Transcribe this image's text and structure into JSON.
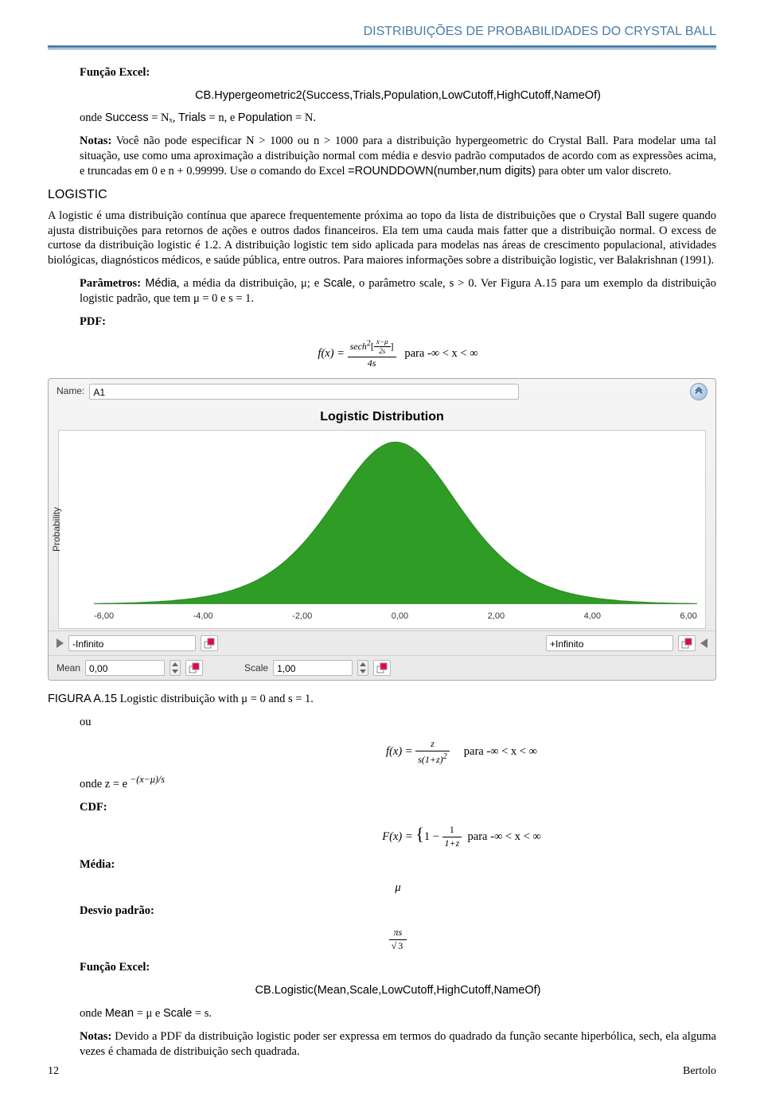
{
  "header": {
    "title": "DISTRIBUIÇÕES DE PROBABILIDADES DO CRYSTAL BALL"
  },
  "sec1": {
    "funcLabel": "Função Excel:",
    "funcCall": "CB.Hypergeometric2(Success,Trials,Population,LowCutoff,HighCutoff,NameOf)",
    "onde": "onde ",
    "success": "Success",
    "eq1": " = Nₓ, ",
    "trials": "Trials",
    "eq2": " = n, e ",
    "population": "Population",
    "eq3": " = N.",
    "notasLabel": "Notas:",
    "notasText": " Você não pode especificar N > 1000 ou n > 1000 para a distribuição hypergeometric do Crystal Ball. Para modelar uma tal situação, use como uma aproximação a distribuição normal com média e desvio padrão computados de acordo com as expressões acima, e truncadas em 0 e n + 0.99999. Use o comando do Excel ",
    "rounddown": "=ROUNDDOWN(number,num digits)",
    "notasTail": " para obter um valor discreto."
  },
  "logistic": {
    "title": "LOGISTIC",
    "para": "A logistic é uma distribuição contínua que aparece frequentemente próxima ao topo da lista de distribuições que o Crystal Ball sugere quando ajusta distribuições para retornos de ações e outros dados financeiros. Ela tem uma cauda mais fatter que a distribuição normal. O excess de curtose da distribuição logistic é 1.2. A distribuição logistic tem sido aplicada para modelas nas áreas de crescimento populacional, atividades biológicas, diagnósticos médicos, e saúde pública, entre outros. Para maiores informações sobre a distribuição logistic, ver Balakrishnan (1991).",
    "paramsLabel": "Parâmetros:",
    "paramsText1": " Média",
    "paramsText2": ", a média da distribuição, μ; e ",
    "paramsText3": "Scale",
    "paramsText4": ", o parâmetro scale, s > 0. Ver Figura A.15 para um exemplo da distribuição logistic padrão, que tem μ = 0 e s = 1.",
    "pdfLabel": "PDF:",
    "pdfRange": "para -∞ < x < ∞"
  },
  "dialog": {
    "nameLabel": "Name:",
    "nameValue": "A1",
    "title": "Logistic Distribution",
    "yAxisLabel": "Probability",
    "xticks": [
      "-6,00",
      "-4,00",
      "-2,00",
      "0,00",
      "2,00",
      "4,00",
      "6,00"
    ],
    "negInf": "-Infinito",
    "posInf": "+Infinito",
    "meanLabel": "Mean",
    "meanValue": "0,00",
    "scaleLabel": "Scale",
    "scaleValue": "1,00",
    "curveColor": "#2a8a23",
    "curveFill": "#2f9c26",
    "bgColor": "#ffffff"
  },
  "caption": {
    "label": "FIGURA A.15",
    "text": " Logistic distribuição with μ = 0 and s = 1."
  },
  "post": {
    "ou": "ou",
    "ondeZ": "onde z =  e",
    "ondeZexp": " −(x−μ)/s",
    "cdfLabel": "CDF:",
    "cdfRange": "para -∞ < x < ∞",
    "pdf2Range": "para -∞ < x < ∞",
    "mediaLabel": "Média:",
    "mediaVal": "μ",
    "desvioLabel": "Desvio padrão:",
    "funcLabel": "Função Excel:",
    "funcCall": "CB.Logistic(Mean,Scale,LowCutoff,HighCutoff,NameOf)",
    "onde": "onde ",
    "mean": "Mean",
    "eq1": " = μ e ",
    "scale": "Scale",
    "eq2": " = s.",
    "notasLabel": "Notas:",
    "notasText": " Devido a PDF da distribuição logistic poder ser expressa em termos do quadrado da função secante hiperbólica, sech, ela alguma vezes é chamada de distribuição sech quadrada."
  },
  "footer": {
    "page": "12",
    "author": "Bertolo"
  }
}
